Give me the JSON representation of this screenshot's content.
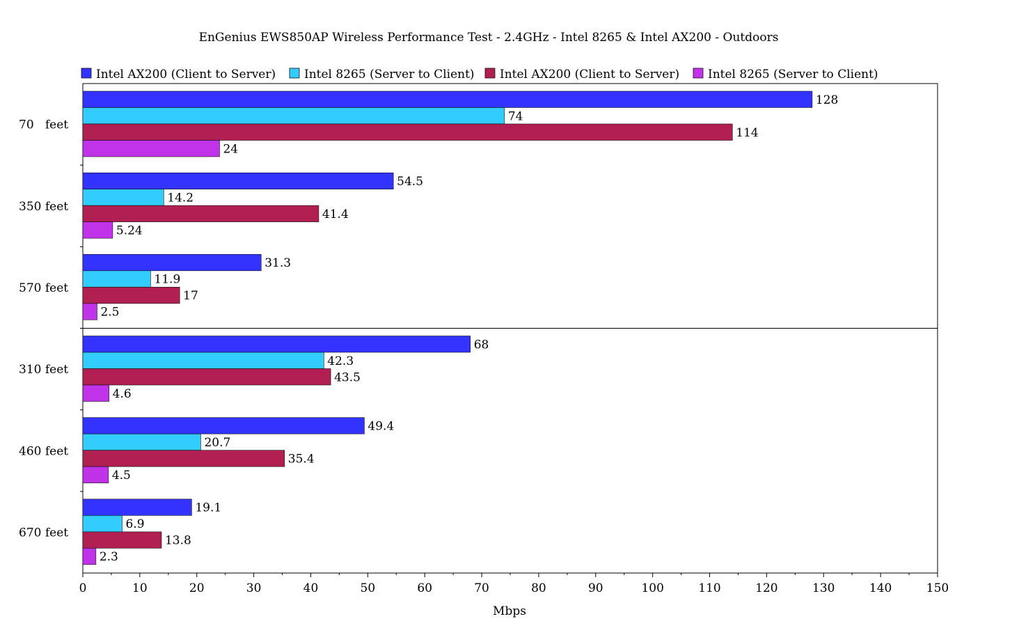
{
  "chart_data": {
    "type": "bar",
    "orientation": "horizontal",
    "title": "EnGenius EWS850AP Wireless Performance Test - 2.4GHz - Intel 8265 & Intel AX200 - Outdoors",
    "xlabel": "Mbps",
    "ylabel": "",
    "xlim": [
      0,
      150
    ],
    "xticks": [
      0,
      10,
      20,
      30,
      40,
      50,
      60,
      70,
      80,
      90,
      100,
      110,
      120,
      130,
      140,
      150
    ],
    "grid": false,
    "legend_position": "top",
    "categories": [
      "70   feet",
      "350 feet",
      "570 feet",
      "310 feet",
      "460 feet",
      "670 feet"
    ],
    "series": [
      {
        "name": "Intel AX200 (Client to Server)",
        "color": "#3333ff",
        "values": [
          128,
          54.5,
          31.3,
          68,
          49.4,
          19.1
        ],
        "labels": [
          "128",
          "54.5",
          "31.3",
          "68",
          "49.4",
          "19.1"
        ]
      },
      {
        "name": "Intel 8265 (Server to Client)",
        "color": "#33ccff",
        "values": [
          74,
          14.2,
          11.9,
          42.3,
          20.7,
          6.9
        ],
        "labels": [
          "74",
          "14.2",
          "11.9",
          "42.3",
          "20.7",
          "6.9"
        ]
      },
      {
        "name": "Intel AX200 (Client to Server)",
        "color": "#b01e52",
        "values": [
          114,
          41.4,
          17,
          43.5,
          35.4,
          13.8
        ],
        "labels": [
          "114",
          "41.4",
          "17",
          "43.5",
          "35.4",
          "13.8"
        ]
      },
      {
        "name": "Intel 8265 (Server to Client)",
        "color": "#c033e8",
        "values": [
          24,
          5.24,
          2.5,
          4.6,
          4.5,
          2.3
        ],
        "labels": [
          "24",
          "5.24",
          "2.5",
          "4.6",
          "4.5",
          "2.3"
        ]
      }
    ]
  }
}
